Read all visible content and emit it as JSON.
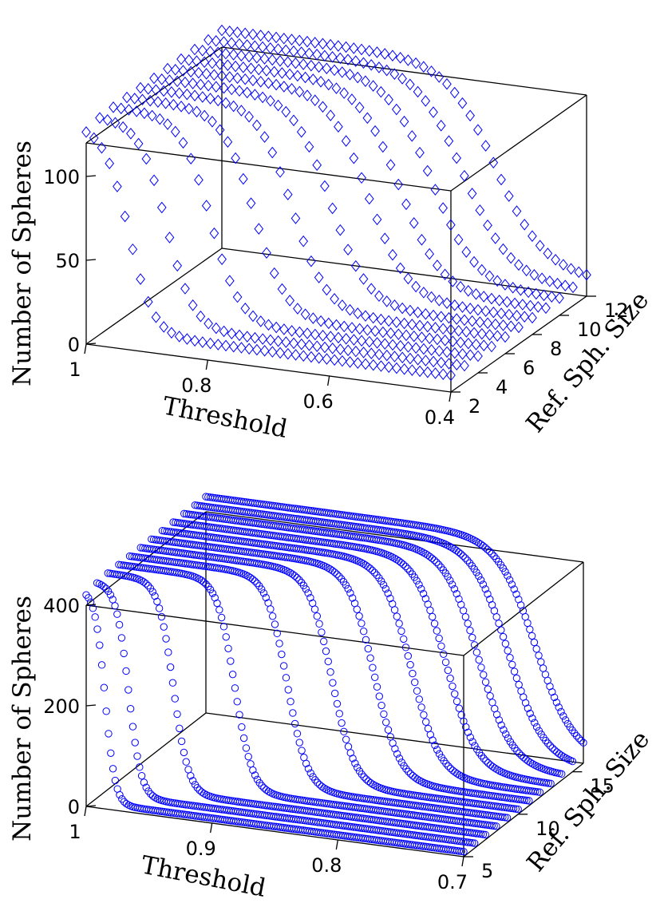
{
  "chart_data": [
    {
      "type": "scatter3d",
      "marker": "diamond",
      "marker_color": "#0000ff",
      "xlabel": "Threshold",
      "ylabel": "Ref. Sph. Size",
      "zlabel": "Number of Spheres",
      "xlim": [
        1,
        0.4
      ],
      "ylim": [
        2,
        12
      ],
      "zlim": [
        0,
        120
      ],
      "x_ticks": [
        "1",
        "0.8",
        "0.6",
        "0.4"
      ],
      "y_ticks": [
        "2",
        "4",
        "6",
        "8",
        "10",
        "12"
      ],
      "z_ticks": [
        "0",
        "50",
        "100"
      ],
      "series": [
        {
          "ref_size": 2,
          "plateau": 130,
          "mid": 0.93,
          "width": 0.02,
          "floor": 10
        },
        {
          "ref_size": 3,
          "plateau": 130,
          "mid": 0.89,
          "width": 0.022,
          "floor": 10
        },
        {
          "ref_size": 4,
          "plateau": 130,
          "mid": 0.84,
          "width": 0.024,
          "floor": 10
        },
        {
          "ref_size": 5,
          "plateau": 130,
          "mid": 0.79,
          "width": 0.026,
          "floor": 10
        },
        {
          "ref_size": 6,
          "plateau": 130,
          "mid": 0.75,
          "width": 0.028,
          "floor": 10
        },
        {
          "ref_size": 7,
          "plateau": 130,
          "mid": 0.71,
          "width": 0.03,
          "floor": 10
        },
        {
          "ref_size": 8,
          "plateau": 130,
          "mid": 0.67,
          "width": 0.032,
          "floor": 10
        },
        {
          "ref_size": 9,
          "plateau": 130,
          "mid": 0.64,
          "width": 0.034,
          "floor": 10
        },
        {
          "ref_size": 10,
          "plateau": 130,
          "mid": 0.61,
          "width": 0.036,
          "floor": 10
        },
        {
          "ref_size": 11,
          "plateau": 130,
          "mid": 0.58,
          "width": 0.038,
          "floor": 10
        },
        {
          "ref_size": 12,
          "plateau": 130,
          "mid": 0.55,
          "width": 0.04,
          "floor": 10
        }
      ]
    },
    {
      "type": "scatter3d",
      "marker": "circle",
      "marker_color": "#0000ff",
      "xlabel": "Threshold",
      "ylabel": "Ref. Sph. Size",
      "zlabel": "Number of Spheres",
      "xlim": [
        1,
        0.7
      ],
      "ylim": [
        5,
        16
      ],
      "zlim": [
        0,
        400
      ],
      "x_ticks": [
        "1",
        "0.9",
        "0.8",
        "0.7"
      ],
      "y_ticks": [
        "5",
        "10",
        "15"
      ],
      "z_ticks": [
        "0",
        "200",
        "400"
      ],
      "series": [
        {
          "ref_size": 5,
          "plateau": 430,
          "mid": 0.985,
          "width": 0.004,
          "floor": 10
        },
        {
          "ref_size": 6,
          "plateau": 430,
          "mid": 0.975,
          "width": 0.005,
          "floor": 10
        },
        {
          "ref_size": 7,
          "plateau": 430,
          "mid": 0.948,
          "width": 0.006,
          "floor": 10
        },
        {
          "ref_size": 8,
          "plateau": 430,
          "mid": 0.908,
          "width": 0.007,
          "floor": 10
        },
        {
          "ref_size": 9,
          "plateau": 430,
          "mid": 0.875,
          "width": 0.008,
          "floor": 10
        },
        {
          "ref_size": 10,
          "plateau": 430,
          "mid": 0.848,
          "width": 0.009,
          "floor": 10
        },
        {
          "ref_size": 11,
          "plateau": 430,
          "mid": 0.823,
          "width": 0.01,
          "floor": 10
        },
        {
          "ref_size": 12,
          "plateau": 430,
          "mid": 0.802,
          "width": 0.011,
          "floor": 10
        },
        {
          "ref_size": 13,
          "plateau": 430,
          "mid": 0.783,
          "width": 0.012,
          "floor": 10
        },
        {
          "ref_size": 14,
          "plateau": 430,
          "mid": 0.766,
          "width": 0.013,
          "floor": 10
        },
        {
          "ref_size": 15,
          "plateau": 430,
          "mid": 0.751,
          "width": 0.014,
          "floor": 10
        },
        {
          "ref_size": 16,
          "plateau": 430,
          "mid": 0.738,
          "width": 0.015,
          "floor": 10
        }
      ]
    }
  ]
}
